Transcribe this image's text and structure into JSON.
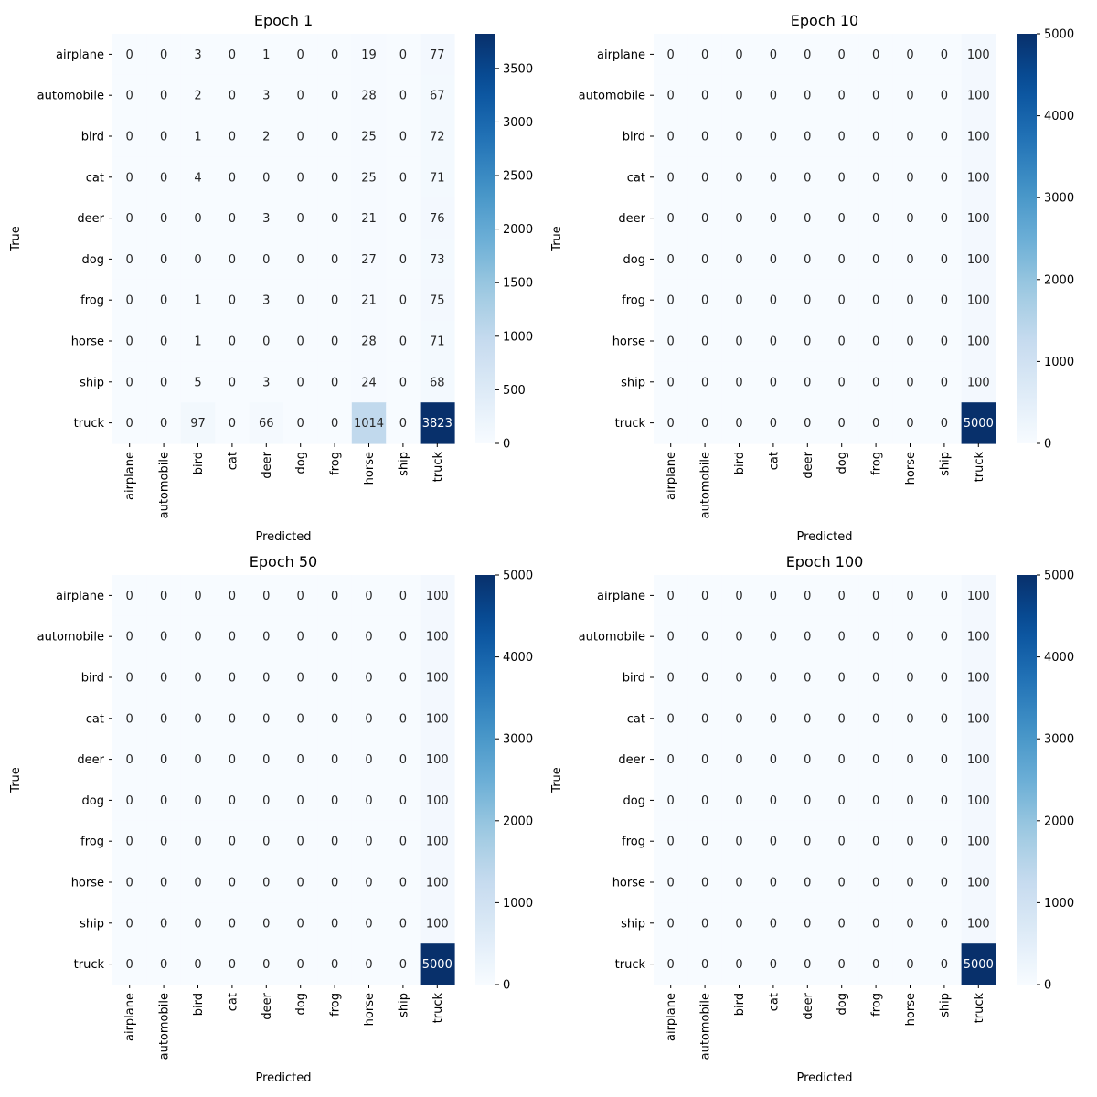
{
  "chart_data": [
    {
      "type": "heatmap",
      "title": "Epoch 1",
      "xlabel": "Predicted",
      "ylabel": "True",
      "categories": [
        "airplane",
        "automobile",
        "bird",
        "cat",
        "deer",
        "dog",
        "frog",
        "horse",
        "ship",
        "truck"
      ],
      "matrix": [
        [
          0,
          0,
          3,
          0,
          1,
          0,
          0,
          19,
          0,
          77
        ],
        [
          0,
          0,
          2,
          0,
          3,
          0,
          0,
          28,
          0,
          67
        ],
        [
          0,
          0,
          1,
          0,
          2,
          0,
          0,
          25,
          0,
          72
        ],
        [
          0,
          0,
          4,
          0,
          0,
          0,
          0,
          25,
          0,
          71
        ],
        [
          0,
          0,
          0,
          0,
          3,
          0,
          0,
          21,
          0,
          76
        ],
        [
          0,
          0,
          0,
          0,
          0,
          0,
          0,
          27,
          0,
          73
        ],
        [
          0,
          0,
          1,
          0,
          3,
          0,
          0,
          21,
          0,
          75
        ],
        [
          0,
          0,
          1,
          0,
          0,
          0,
          0,
          28,
          0,
          71
        ],
        [
          0,
          0,
          5,
          0,
          3,
          0,
          0,
          24,
          0,
          68
        ],
        [
          0,
          0,
          97,
          0,
          66,
          0,
          0,
          1014,
          0,
          3823
        ]
      ],
      "colorbar": {
        "min": 0,
        "max": 3823,
        "ticks": [
          0,
          500,
          1000,
          1500,
          2000,
          2500,
          3000,
          3500
        ]
      }
    },
    {
      "type": "heatmap",
      "title": "Epoch 10",
      "xlabel": "Predicted",
      "ylabel": "True",
      "categories": [
        "airplane",
        "automobile",
        "bird",
        "cat",
        "deer",
        "dog",
        "frog",
        "horse",
        "ship",
        "truck"
      ],
      "matrix": [
        [
          0,
          0,
          0,
          0,
          0,
          0,
          0,
          0,
          0,
          100
        ],
        [
          0,
          0,
          0,
          0,
          0,
          0,
          0,
          0,
          0,
          100
        ],
        [
          0,
          0,
          0,
          0,
          0,
          0,
          0,
          0,
          0,
          100
        ],
        [
          0,
          0,
          0,
          0,
          0,
          0,
          0,
          0,
          0,
          100
        ],
        [
          0,
          0,
          0,
          0,
          0,
          0,
          0,
          0,
          0,
          100
        ],
        [
          0,
          0,
          0,
          0,
          0,
          0,
          0,
          0,
          0,
          100
        ],
        [
          0,
          0,
          0,
          0,
          0,
          0,
          0,
          0,
          0,
          100
        ],
        [
          0,
          0,
          0,
          0,
          0,
          0,
          0,
          0,
          0,
          100
        ],
        [
          0,
          0,
          0,
          0,
          0,
          0,
          0,
          0,
          0,
          100
        ],
        [
          0,
          0,
          0,
          0,
          0,
          0,
          0,
          0,
          0,
          5000
        ]
      ],
      "colorbar": {
        "min": 0,
        "max": 5000,
        "ticks": [
          0,
          1000,
          2000,
          3000,
          4000,
          5000
        ]
      }
    },
    {
      "type": "heatmap",
      "title": "Epoch 50",
      "xlabel": "Predicted",
      "ylabel": "True",
      "categories": [
        "airplane",
        "automobile",
        "bird",
        "cat",
        "deer",
        "dog",
        "frog",
        "horse",
        "ship",
        "truck"
      ],
      "matrix": [
        [
          0,
          0,
          0,
          0,
          0,
          0,
          0,
          0,
          0,
          100
        ],
        [
          0,
          0,
          0,
          0,
          0,
          0,
          0,
          0,
          0,
          100
        ],
        [
          0,
          0,
          0,
          0,
          0,
          0,
          0,
          0,
          0,
          100
        ],
        [
          0,
          0,
          0,
          0,
          0,
          0,
          0,
          0,
          0,
          100
        ],
        [
          0,
          0,
          0,
          0,
          0,
          0,
          0,
          0,
          0,
          100
        ],
        [
          0,
          0,
          0,
          0,
          0,
          0,
          0,
          0,
          0,
          100
        ],
        [
          0,
          0,
          0,
          0,
          0,
          0,
          0,
          0,
          0,
          100
        ],
        [
          0,
          0,
          0,
          0,
          0,
          0,
          0,
          0,
          0,
          100
        ],
        [
          0,
          0,
          0,
          0,
          0,
          0,
          0,
          0,
          0,
          100
        ],
        [
          0,
          0,
          0,
          0,
          0,
          0,
          0,
          0,
          0,
          5000
        ]
      ],
      "colorbar": {
        "min": 0,
        "max": 5000,
        "ticks": [
          0,
          1000,
          2000,
          3000,
          4000,
          5000
        ]
      }
    },
    {
      "type": "heatmap",
      "title": "Epoch 100",
      "xlabel": "Predicted",
      "ylabel": "True",
      "categories": [
        "airplane",
        "automobile",
        "bird",
        "cat",
        "deer",
        "dog",
        "frog",
        "horse",
        "ship",
        "truck"
      ],
      "matrix": [
        [
          0,
          0,
          0,
          0,
          0,
          0,
          0,
          0,
          0,
          100
        ],
        [
          0,
          0,
          0,
          0,
          0,
          0,
          0,
          0,
          0,
          100
        ],
        [
          0,
          0,
          0,
          0,
          0,
          0,
          0,
          0,
          0,
          100
        ],
        [
          0,
          0,
          0,
          0,
          0,
          0,
          0,
          0,
          0,
          100
        ],
        [
          0,
          0,
          0,
          0,
          0,
          0,
          0,
          0,
          0,
          100
        ],
        [
          0,
          0,
          0,
          0,
          0,
          0,
          0,
          0,
          0,
          100
        ],
        [
          0,
          0,
          0,
          0,
          0,
          0,
          0,
          0,
          0,
          100
        ],
        [
          0,
          0,
          0,
          0,
          0,
          0,
          0,
          0,
          0,
          100
        ],
        [
          0,
          0,
          0,
          0,
          0,
          0,
          0,
          0,
          0,
          100
        ],
        [
          0,
          0,
          0,
          0,
          0,
          0,
          0,
          0,
          0,
          5000
        ]
      ],
      "colorbar": {
        "min": 0,
        "max": 5000,
        "ticks": [
          0,
          1000,
          2000,
          3000,
          4000,
          5000
        ]
      }
    }
  ],
  "colormap": {
    "name": "Blues",
    "stops": [
      "#f7fbff",
      "#deebf7",
      "#c6dbef",
      "#9ecae1",
      "#6baed6",
      "#4292c6",
      "#2171b5",
      "#08519c",
      "#08306b"
    ]
  }
}
